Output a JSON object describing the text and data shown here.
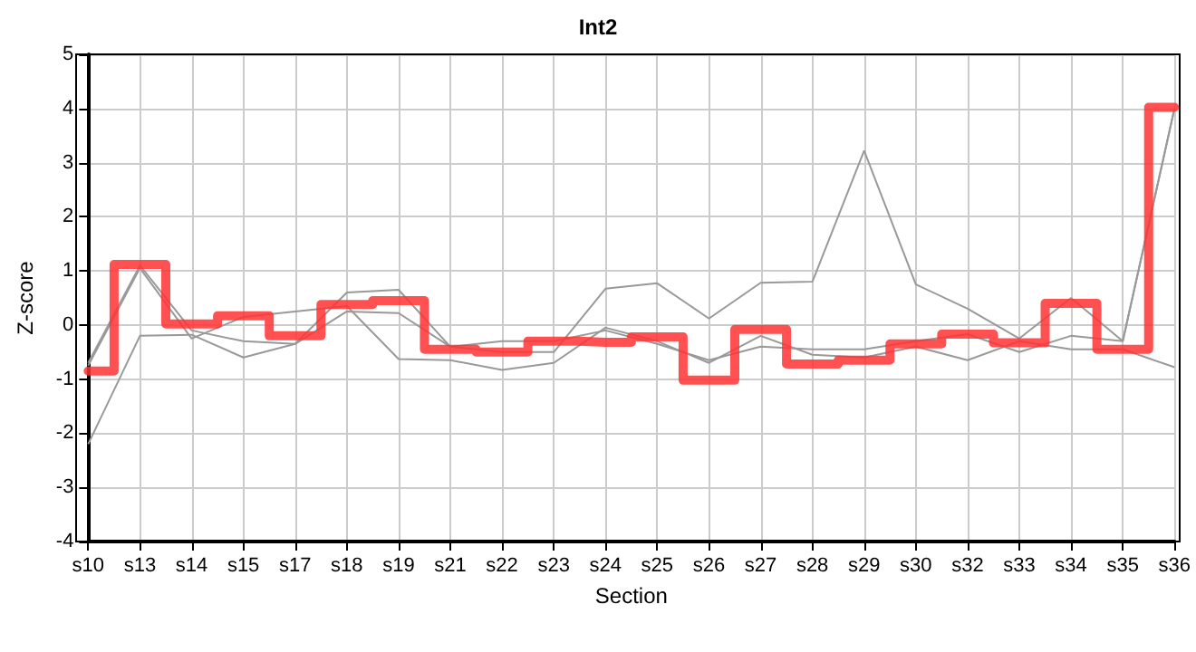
{
  "chart_data": {
    "type": "line",
    "title": "Int2",
    "xlabel": "Section",
    "ylabel": "Z-score",
    "categories": [
      "s10",
      "s13",
      "s14",
      "s15",
      "s17",
      "s18",
      "s19",
      "s21",
      "s22",
      "s23",
      "s24",
      "s25",
      "s26",
      "s27",
      "s28",
      "s29",
      "s30",
      "s32",
      "s33",
      "s34",
      "s35",
      "s36"
    ],
    "series": [
      {
        "color": "#999999",
        "values": [
          -0.7,
          1.1,
          -0.1,
          -0.3,
          -0.35,
          0.6,
          0.65,
          -0.4,
          -0.5,
          -0.5,
          0.67,
          0.77,
          0.12,
          0.78,
          0.8,
          3.22,
          0.75,
          0.3,
          -0.25,
          0.5,
          -0.3,
          4.0
        ]
      },
      {
        "color": "#999999",
        "values": [
          -2.2,
          -0.2,
          -0.18,
          -0.6,
          -0.35,
          0.25,
          0.22,
          -0.4,
          -0.3,
          -0.3,
          -0.1,
          -0.35,
          -0.65,
          -0.4,
          -0.45,
          -0.45,
          -0.3,
          -0.17,
          -0.5,
          -0.2,
          -0.3,
          4.0
        ]
      },
      {
        "color": "#999999",
        "values": [
          -0.75,
          1.05,
          -0.25,
          0.15,
          0.25,
          0.35,
          -0.63,
          -0.65,
          -0.83,
          -0.7,
          -0.05,
          -0.3,
          -0.7,
          -0.2,
          -0.55,
          -0.6,
          -0.4,
          -0.65,
          -0.3,
          -0.45,
          -0.45,
          -0.78
        ]
      },
      {
        "type": "step",
        "color": "#ff3333",
        "values": [
          -0.85,
          1.12,
          0.02,
          0.17,
          -0.2,
          0.38,
          0.45,
          -0.45,
          -0.5,
          -0.3,
          -0.32,
          -0.22,
          -1.02,
          -0.08,
          -0.72,
          -0.65,
          -0.35,
          -0.17,
          -0.33,
          0.4,
          -0.45,
          4.02
        ]
      }
    ],
    "ylim": [
      -4,
      5
    ],
    "yticks": [
      -4,
      -3,
      -2,
      -1,
      0,
      1,
      2,
      3,
      4,
      5
    ],
    "grid": true,
    "marker": "none"
  }
}
